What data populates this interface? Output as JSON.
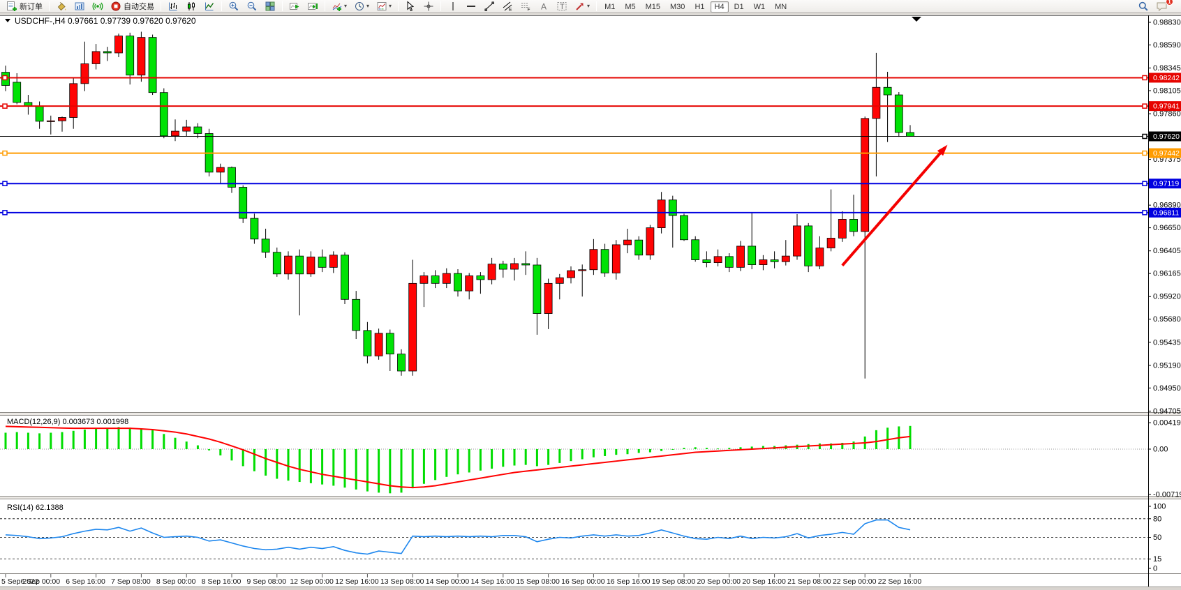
{
  "toolbar": {
    "new_order_label": "新订单",
    "auto_trading_label": "自动交易",
    "caret": "▾",
    "channel_letter": "E",
    "fib_letter": "F",
    "text_letter": "A",
    "label_letter": "T",
    "timeframes": [
      "M1",
      "M5",
      "M15",
      "M30",
      "H1",
      "H4",
      "D1",
      "W1",
      "MN"
    ],
    "active_timeframe": "H4",
    "notification_count": "1"
  },
  "chart": {
    "title_symbol": "USDCHF-,H4",
    "title_ohlc": "0.97661 0.97739 0.97620 0.97620",
    "title_full": "USDCHF-,H4  0.97661 0.97739 0.97620 0.97620"
  },
  "indicators": {
    "macd": {
      "label": "MACD(12,26,9)",
      "values": "0.003673 0.001998",
      "text": "MACD(12,26,9) 0.003673 0.001998"
    },
    "rsi": {
      "label": "RSI(14)",
      "value": "62.1388",
      "text": "RSI(14) 62.1388"
    }
  },
  "chart_data": {
    "type": "candlestick",
    "symbol": "USDCHF-",
    "timeframe": "H4",
    "ylim": [
      0.94686,
      0.98904
    ],
    "price_ticks": [
      "0.98830",
      "0.98590",
      "0.98345",
      "0.98105",
      "0.97860",
      "0.97375",
      "0.96890",
      "0.96650",
      "0.96405",
      "0.96165",
      "0.95920",
      "0.95680",
      "0.95435",
      "0.95190",
      "0.94950",
      "0.94705"
    ],
    "price_badges": [
      {
        "label": "0.98242",
        "value": 0.98242,
        "color": "#e60400"
      },
      {
        "label": "0.97941",
        "value": 0.97941,
        "color": "#e60400"
      },
      {
        "label": "0.97620",
        "value": 0.9762,
        "color": "#000000"
      },
      {
        "label": "0.97442",
        "value": 0.97442,
        "color": "#ff9c00"
      },
      {
        "label": "0.97119",
        "value": 0.97119,
        "color": "#0000e0"
      },
      {
        "label": "0.96811",
        "value": 0.96811,
        "color": "#0000e0"
      }
    ],
    "hlines": [
      {
        "value": 0.98242,
        "color": "#e60400",
        "width": 2,
        "anchor": true
      },
      {
        "value": 0.97941,
        "color": "#e60400",
        "width": 2,
        "anchor": true
      },
      {
        "value": 0.9762,
        "color": "#000000",
        "width": 1,
        "anchor": false
      },
      {
        "value": 0.97442,
        "color": "#ff9c00",
        "width": 2,
        "anchor": true
      },
      {
        "value": 0.97119,
        "color": "#0000e0",
        "width": 2,
        "anchor": true
      },
      {
        "value": 0.96811,
        "color": "#0000e0",
        "width": 2,
        "anchor": true
      }
    ],
    "arrow": {
      "from_bar": 74,
      "from_price": 0.9625,
      "to_bar": 83.3,
      "to_price": 0.9753,
      "color": "#f40000"
    },
    "bull_color": "#ff0404",
    "bear_color": "#00e205",
    "time_labels": [
      {
        "i": 0,
        "label": "5 Sep 2022"
      },
      {
        "i": 4,
        "label": "6 Sep 00:00"
      },
      {
        "i": 8,
        "label": "6 Sep 16:00"
      },
      {
        "i": 12,
        "label": "7 Sep 08:00"
      },
      {
        "i": 16,
        "label": "8 Sep 00:00"
      },
      {
        "i": 20,
        "label": "8 Sep 16:00"
      },
      {
        "i": 24,
        "label": "9 Sep 08:00"
      },
      {
        "i": 28,
        "label": "12 Sep 00:00"
      },
      {
        "i": 32,
        "label": "12 Sep 16:00"
      },
      {
        "i": 36,
        "label": "13 Sep 08:00"
      },
      {
        "i": 40,
        "label": "14 Sep 00:00"
      },
      {
        "i": 44,
        "label": "14 Sep 16:00"
      },
      {
        "i": 48,
        "label": "15 Sep 08:00"
      },
      {
        "i": 52,
        "label": "16 Sep 00:00"
      },
      {
        "i": 56,
        "label": "16 Sep 16:00"
      },
      {
        "i": 60,
        "label": "19 Sep 08:00"
      },
      {
        "i": 64,
        "label": "20 Sep 00:00"
      },
      {
        "i": 68,
        "label": "20 Sep 16:00"
      },
      {
        "i": 72,
        "label": "21 Sep 08:00"
      },
      {
        "i": 76,
        "label": "22 Sep 00:00"
      },
      {
        "i": 80,
        "label": "22 Sep 16:00"
      }
    ],
    "candles": [
      [
        "5 Sep 08:00",
        0.983,
        0.9837,
        0.981,
        0.9816
      ],
      [
        "5 Sep 12:00",
        0.98194,
        0.9829,
        0.9796,
        0.9798
      ],
      [
        "5 Sep 16:00",
        0.9798,
        0.9806,
        0.9785,
        0.9794
      ],
      [
        "5 Sep 20:00",
        0.9794,
        0.9799,
        0.977,
        0.9778
      ],
      [
        "6 Sep 00:00",
        0.9778,
        0.9784,
        0.9764,
        0.97785
      ],
      [
        "6 Sep 04:00",
        0.97785,
        0.9783,
        0.9767,
        0.9782
      ],
      [
        "6 Sep 08:00",
        0.9782,
        0.98245,
        0.977,
        0.9818
      ],
      [
        "6 Sep 12:00",
        0.9818,
        0.98625,
        0.981,
        0.9839
      ],
      [
        "6 Sep 16:00",
        0.9839,
        0.986,
        0.9833,
        0.9852
      ],
      [
        "6 Sep 20:00",
        0.9852,
        0.9857,
        0.9842,
        0.98505
      ],
      [
        "7 Sep 00:00",
        0.98505,
        0.9871,
        0.9846,
        0.98685
      ],
      [
        "7 Sep 04:00",
        0.98685,
        0.9872,
        0.9817,
        0.9827
      ],
      [
        "7 Sep 08:00",
        0.9827,
        0.9873,
        0.982,
        0.9867
      ],
      [
        "7 Sep 12:00",
        0.9867,
        0.987,
        0.9806,
        0.98085
      ],
      [
        "7 Sep 16:00",
        0.98085,
        0.9813,
        0.976,
        0.97625
      ],
      [
        "7 Sep 20:00",
        0.97625,
        0.978,
        0.9757,
        0.97675
      ],
      [
        "8 Sep 00:00",
        0.97675,
        0.97795,
        0.9762,
        0.9772
      ],
      [
        "8 Sep 04:00",
        0.9772,
        0.9776,
        0.976,
        0.9765
      ],
      [
        "8 Sep 08:00",
        0.9765,
        0.977,
        0.97195,
        0.9724
      ],
      [
        "8 Sep 12:00",
        0.9724,
        0.9733,
        0.9712,
        0.9729
      ],
      [
        "8 Sep 16:00",
        0.9729,
        0.973,
        0.9702,
        0.9708
      ],
      [
        "8 Sep 20:00",
        0.9708,
        0.971,
        0.967,
        0.9675
      ],
      [
        "9 Sep 00:00",
        0.9675,
        0.968,
        0.9648,
        0.9653
      ],
      [
        "9 Sep 04:00",
        0.9653,
        0.9664,
        0.9633,
        0.9639
      ],
      [
        "9 Sep 08:00",
        0.9639,
        0.9644,
        0.9613,
        0.9616
      ],
      [
        "9 Sep 12:00",
        0.9616,
        0.964,
        0.961,
        0.9635
      ],
      [
        "9 Sep 16:00",
        0.9635,
        0.9642,
        0.9572,
        0.9616
      ],
      [
        "9 Sep 20:00",
        0.9616,
        0.964,
        0.9613,
        0.9634
      ],
      [
        "12 Sep 00:00",
        0.9634,
        0.9642,
        0.9618,
        0.9623
      ],
      [
        "12 Sep 04:00",
        0.9623,
        0.964,
        0.9617,
        0.9636
      ],
      [
        "12 Sep 08:00",
        0.9636,
        0.9639,
        0.9584,
        0.9589
      ],
      [
        "12 Sep 12:00",
        0.9589,
        0.9598,
        0.9547,
        0.9556
      ],
      [
        "12 Sep 16:00",
        0.9556,
        0.9565,
        0.9521,
        0.9529
      ],
      [
        "12 Sep 20:00",
        0.9529,
        0.9558,
        0.9525,
        0.9553
      ],
      [
        "13 Sep 00:00",
        0.9553,
        0.9557,
        0.9513,
        0.9531
      ],
      [
        "13 Sep 04:00",
        0.9531,
        0.9536,
        0.9508,
        0.9513
      ],
      [
        "13 Sep 08:00",
        0.9513,
        0.9631,
        0.9508,
        0.9606
      ],
      [
        "13 Sep 12:00",
        0.9606,
        0.9618,
        0.9581,
        0.9614
      ],
      [
        "13 Sep 16:00",
        0.9614,
        0.962,
        0.9601,
        0.9606
      ],
      [
        "13 Sep 20:00",
        0.9606,
        0.9622,
        0.9601,
        0.96165
      ],
      [
        "14 Sep 00:00",
        0.96165,
        0.9621,
        0.9592,
        0.9598
      ],
      [
        "14 Sep 04:00",
        0.9598,
        0.9617,
        0.9589,
        0.9614
      ],
      [
        "14 Sep 08:00",
        0.9614,
        0.9618,
        0.9595,
        0.961
      ],
      [
        "14 Sep 12:00",
        0.961,
        0.9633,
        0.9605,
        0.96265
      ],
      [
        "14 Sep 16:00",
        0.96265,
        0.963,
        0.9612,
        0.9621
      ],
      [
        "14 Sep 20:00",
        0.9621,
        0.9633,
        0.9609,
        0.9627
      ],
      [
        "15 Sep 00:00",
        0.9627,
        0.964,
        0.9615,
        0.96255
      ],
      [
        "15 Sep 04:00",
        0.96255,
        0.9633,
        0.95515,
        0.9574
      ],
      [
        "15 Sep 08:00",
        0.9574,
        0.9611,
        0.95575,
        0.9606
      ],
      [
        "15 Sep 12:00",
        0.9606,
        0.9616,
        0.9589,
        0.9612
      ],
      [
        "15 Sep 16:00",
        0.9612,
        0.9624,
        0.9606,
        0.96195
      ],
      [
        "15 Sep 20:00",
        0.96195,
        0.9626,
        0.9592,
        0.96205
      ],
      [
        "16 Sep 00:00",
        0.96205,
        0.9653,
        0.9615,
        0.9642
      ],
      [
        "16 Sep 04:00",
        0.9642,
        0.9648,
        0.9613,
        0.9617
      ],
      [
        "16 Sep 08:00",
        0.9617,
        0.9652,
        0.961,
        0.9647
      ],
      [
        "16 Sep 12:00",
        0.9647,
        0.9664,
        0.9638,
        0.9652
      ],
      [
        "16 Sep 16:00",
        0.9652,
        0.9656,
        0.9631,
        0.9636
      ],
      [
        "16 Sep 20:00",
        0.9636,
        0.9668,
        0.9631,
        0.9665
      ],
      [
        "19 Sep 00:00",
        0.9665,
        0.9703,
        0.9659,
        0.96945
      ],
      [
        "19 Sep 04:00",
        0.96945,
        0.9699,
        0.9644,
        0.9678
      ],
      [
        "19 Sep 08:00",
        0.9678,
        0.968,
        0.9651,
        0.96523
      ],
      [
        "19 Sep 12:00",
        0.96523,
        0.9656,
        0.9629,
        0.9631
      ],
      [
        "19 Sep 16:00",
        0.9631,
        0.964,
        0.9623,
        0.9628
      ],
      [
        "19 Sep 20:00",
        0.9628,
        0.9642,
        0.9624,
        0.96345
      ],
      [
        "20 Sep 00:00",
        0.96345,
        0.9638,
        0.9618,
        0.9623
      ],
      [
        "20 Sep 04:00",
        0.9623,
        0.9651,
        0.9619,
        0.96455
      ],
      [
        "20 Sep 08:00",
        0.96455,
        0.9681,
        0.9621,
        0.96258
      ],
      [
        "20 Sep 12:00",
        0.96258,
        0.9636,
        0.962,
        0.9631
      ],
      [
        "20 Sep 16:00",
        0.9631,
        0.964,
        0.9622,
        0.9629
      ],
      [
        "20 Sep 20:00",
        0.9629,
        0.9652,
        0.9625,
        0.9635
      ],
      [
        "21 Sep 00:00",
        0.9635,
        0.96795,
        0.9631,
        0.9667
      ],
      [
        "21 Sep 04:00",
        0.9667,
        0.967,
        0.9618,
        0.96245
      ],
      [
        "21 Sep 08:00",
        0.96245,
        0.9656,
        0.9621,
        0.96436
      ],
      [
        "21 Sep 12:00",
        0.96436,
        0.97057,
        0.964,
        0.9654
      ],
      [
        "21 Sep 16:00",
        0.9654,
        0.96825,
        0.965,
        0.9674
      ],
      [
        "21 Sep 20:00",
        0.9674,
        0.97,
        0.9656,
        0.9661
      ],
      [
        "22 Sep 00:00",
        0.9661,
        0.9783,
        0.9505,
        0.9781
      ],
      [
        "22 Sep 04:00",
        0.9781,
        0.98505,
        0.97195,
        0.9814
      ],
      [
        "22 Sep 08:00",
        0.9814,
        0.98305,
        0.9756,
        0.9806
      ],
      [
        "22 Sep 12:00",
        0.9806,
        0.9809,
        0.97615,
        0.97661
      ],
      [
        "22 Sep 16:00",
        0.97661,
        0.97739,
        0.9762,
        0.9762
      ]
    ],
    "macd": {
      "ylim": [
        -0.007196,
        0.00419
      ],
      "ticks": [
        {
          "label": "0.00419",
          "value": 0.00419
        },
        {
          "label": "0.00",
          "value": 0
        },
        {
          "label": "-0.007196",
          "value": -0.007196
        }
      ],
      "hist_color": "#00dd00",
      "signal_color": "#ff0000",
      "hist": [
        0.0026,
        0.0027,
        0.0026,
        0.0025,
        0.0026,
        0.0027,
        0.0029,
        0.0031,
        0.0033,
        0.0034,
        0.0035,
        0.0034,
        0.0033,
        0.003,
        0.0024,
        0.0018,
        0.0012,
        0.0006,
        -0.0002,
        -0.001,
        -0.0018,
        -0.0027,
        -0.0035,
        -0.0042,
        -0.0047,
        -0.005,
        -0.0052,
        -0.0054,
        -0.0056,
        -0.0058,
        -0.0061,
        -0.0064,
        -0.0067,
        -0.0069,
        -0.007,
        -0.0069,
        -0.0062,
        -0.0055,
        -0.0049,
        -0.0044,
        -0.004,
        -0.0037,
        -0.0034,
        -0.0031,
        -0.0028,
        -0.0026,
        -0.0025,
        -0.0027,
        -0.0025,
        -0.0022,
        -0.0019,
        -0.0016,
        -0.0013,
        -0.0011,
        -0.0009,
        -0.0008,
        -0.0006,
        -0.0005,
        -0.0003,
        0.0,
        0.0002,
        0.0003,
        0.0002,
        0.0001,
        0.0002,
        0.0003,
        0.0004,
        0.0005,
        0.0005,
        0.0006,
        0.0007,
        0.0008,
        0.0009,
        0.0009,
        0.001,
        0.0012,
        0.002,
        0.003,
        0.0034,
        0.0036,
        0.003673
      ],
      "signal": [
        0.0036,
        0.00355,
        0.0035,
        0.00345,
        0.0034,
        0.00335,
        0.0033,
        0.0033,
        0.0033,
        0.0033,
        0.0033,
        0.0033,
        0.0032,
        0.0031,
        0.0029,
        0.0027,
        0.0024,
        0.002,
        0.0016,
        0.0011,
        0.0005,
        -0.0001,
        -0.0008,
        -0.0015,
        -0.0021,
        -0.0027,
        -0.0032,
        -0.0036,
        -0.004,
        -0.0043,
        -0.0046,
        -0.0049,
        -0.0052,
        -0.0055,
        -0.0058,
        -0.006,
        -0.0061,
        -0.006,
        -0.0058,
        -0.0055,
        -0.0052,
        -0.0049,
        -0.0046,
        -0.0043,
        -0.004,
        -0.0037,
        -0.0035,
        -0.0033,
        -0.0031,
        -0.0029,
        -0.0027,
        -0.0025,
        -0.0023,
        -0.0021,
        -0.0019,
        -0.0017,
        -0.0015,
        -0.0013,
        -0.0011,
        -0.0009,
        -0.0007,
        -0.0005,
        -0.0004,
        -0.0003,
        -0.0002,
        -0.0001,
        0.0,
        0.0001,
        0.0002,
        0.0003,
        0.0004,
        0.0005,
        0.0006,
        0.0007,
        0.0008,
        0.0009,
        0.001,
        0.0012,
        0.0015,
        0.0018,
        0.001998
      ]
    },
    "rsi": {
      "ylim": [
        0,
        100
      ],
      "ticks": [
        {
          "label": "100",
          "value": 100
        },
        {
          "label": "80",
          "value": 80
        },
        {
          "label": "50",
          "value": 50
        },
        {
          "label": "15",
          "value": 15
        },
        {
          "label": "0",
          "value": 0
        }
      ],
      "levels": [
        80,
        50,
        15
      ],
      "color": "#1c86ee",
      "values": [
        54,
        53,
        51,
        48,
        49,
        51,
        56,
        60,
        63,
        62,
        66,
        60,
        65,
        57,
        50,
        51,
        52,
        50,
        44,
        46,
        41,
        36,
        32,
        30,
        31,
        34,
        31,
        34,
        32,
        35,
        29,
        25,
        23,
        28,
        26,
        24,
        52,
        51,
        52,
        51,
        52,
        51,
        52,
        51,
        53,
        53,
        51,
        43,
        47,
        50,
        49,
        52,
        54,
        52,
        54,
        52,
        53,
        57,
        62,
        57,
        52,
        48,
        47,
        50,
        48,
        52,
        48,
        50,
        49,
        51,
        56,
        49,
        53,
        55,
        58,
        55,
        72,
        78,
        78,
        66,
        62.1388
      ]
    }
  }
}
